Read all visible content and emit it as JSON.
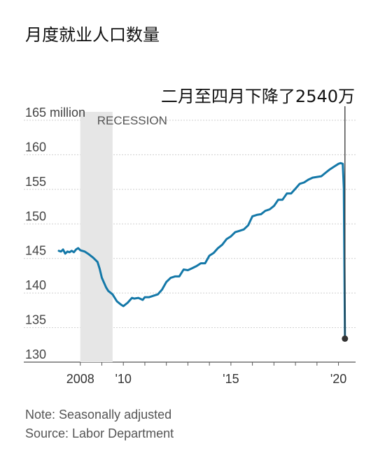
{
  "title": "月度就业人口数量",
  "note": "Note: Seasonally adjusted",
  "source": "Source: Labor Department",
  "colors": {
    "line": "#1478a8",
    "recession": "#e6e6e6",
    "grid": "#cfcfcf",
    "marker": "#333333"
  },
  "chart_data": {
    "type": "line",
    "title": "月度就业人口数量",
    "xlabel": "",
    "ylabel": "",
    "ylim": [
      130,
      165
    ],
    "xlim": [
      2007.0,
      2020.6
    ],
    "y_ticks": [
      130,
      135,
      140,
      145,
      150,
      155,
      160,
      165
    ],
    "y_tick_labels": [
      "130",
      "135",
      "140",
      "145",
      "150",
      "155",
      "160",
      "165 million"
    ],
    "x_ticks": [
      2008,
      2010,
      2015,
      2020
    ],
    "x_tick_labels": [
      "2008",
      "'10",
      "'15",
      "'20"
    ],
    "recession": {
      "label": "RECESSION",
      "start": 2008.0,
      "end": 2009.5
    },
    "annotation": {
      "text": "二月至四月下降了2540万",
      "x": 2020.3,
      "y": 133.4
    },
    "series": [
      {
        "x": [
          2007.0,
          2007.1,
          2007.2,
          2007.3,
          2007.4,
          2007.5,
          2007.6,
          2007.7,
          2007.8,
          2007.9,
          2008.0,
          2008.2,
          2008.4,
          2008.6,
          2008.8,
          2008.9,
          2009.0,
          2009.2,
          2009.3,
          2009.5,
          2009.7,
          2009.9,
          2010.0,
          2010.2,
          2010.4,
          2010.5,
          2010.7,
          2010.9,
          2011.0,
          2011.2,
          2011.4,
          2011.6,
          2011.8,
          2012.0,
          2012.2,
          2012.4,
          2012.6,
          2012.8,
          2013.0,
          2013.2,
          2013.4,
          2013.6,
          2013.8,
          2014.0,
          2014.2,
          2014.4,
          2014.6,
          2014.8,
          2015.0,
          2015.2,
          2015.4,
          2015.6,
          2015.8,
          2016.0,
          2016.2,
          2016.4,
          2016.6,
          2016.8,
          2017.0,
          2017.2,
          2017.4,
          2017.6,
          2017.8,
          2018.0,
          2018.2,
          2018.4,
          2018.6,
          2018.8,
          2019.0,
          2019.2,
          2019.4,
          2019.6,
          2019.8,
          2020.0,
          2020.1,
          2020.2,
          2020.25,
          2020.3
        ],
        "y": [
          146.1,
          146.0,
          146.3,
          145.7,
          146.0,
          145.9,
          146.1,
          145.9,
          146.3,
          146.5,
          146.2,
          146.0,
          145.6,
          145.1,
          144.5,
          143.5,
          142.2,
          140.8,
          140.3,
          139.8,
          138.8,
          138.3,
          138.1,
          138.6,
          139.3,
          139.2,
          139.3,
          139.0,
          139.4,
          139.4,
          139.6,
          139.8,
          140.5,
          141.6,
          142.2,
          142.4,
          142.4,
          143.4,
          143.3,
          143.6,
          143.9,
          144.3,
          144.3,
          145.4,
          145.8,
          146.5,
          147.0,
          147.8,
          148.2,
          148.8,
          149.0,
          149.2,
          149.8,
          151.1,
          151.3,
          151.4,
          151.9,
          152.1,
          152.6,
          153.5,
          153.5,
          154.4,
          154.4,
          155.1,
          155.8,
          156.0,
          156.4,
          156.7,
          156.8,
          156.9,
          157.4,
          157.9,
          158.3,
          158.7,
          158.8,
          158.7,
          155.2,
          133.4
        ]
      }
    ]
  }
}
